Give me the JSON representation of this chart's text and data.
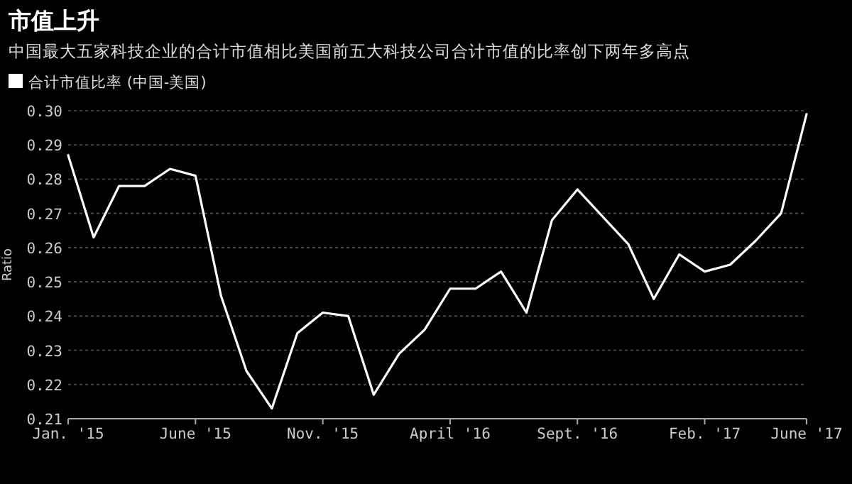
{
  "chart_data": {
    "type": "line",
    "title": "市值上升",
    "subtitle": "中国最大五家科技企业的合计市值相比美国前五大科技公司合计市值的比率创下两年多高点",
    "ylabel": "Ratio",
    "x": [
      "2015-01",
      "2015-02",
      "2015-03",
      "2015-04",
      "2015-05",
      "2015-06",
      "2015-07",
      "2015-08",
      "2015-09",
      "2015-10",
      "2015-11",
      "2015-12",
      "2016-01",
      "2016-02",
      "2016-03",
      "2016-04",
      "2016-05",
      "2016-06",
      "2016-07",
      "2016-08",
      "2016-09",
      "2016-10",
      "2016-11",
      "2016-12",
      "2017-01",
      "2017-02",
      "2017-03",
      "2017-04",
      "2017-05",
      "2017-06"
    ],
    "series": [
      {
        "name": "合计市值比率 (中国-美国)",
        "color": "#ffffff",
        "values": [
          0.287,
          0.263,
          0.278,
          0.278,
          0.283,
          0.281,
          0.246,
          0.224,
          0.213,
          0.235,
          0.241,
          0.24,
          0.217,
          0.229,
          0.236,
          0.248,
          0.248,
          0.253,
          0.241,
          0.268,
          0.277,
          0.269,
          0.261,
          0.245,
          0.258,
          0.253,
          0.255,
          0.262,
          0.27,
          0.299
        ]
      }
    ],
    "xlim": [
      "2015-01",
      "2017-06"
    ],
    "xticks": [
      {
        "value": "2015-01",
        "label": "Jan. '15"
      },
      {
        "value": "2015-06",
        "label": "June '15"
      },
      {
        "value": "2015-11",
        "label": "Nov. '15"
      },
      {
        "value": "2016-04",
        "label": "April '16"
      },
      {
        "value": "2016-09",
        "label": "Sept. '16"
      },
      {
        "value": "2017-02",
        "label": "Feb. '17"
      },
      {
        "value": "2017-06",
        "label": "June '17"
      }
    ],
    "ylim": [
      0.21,
      0.3
    ],
    "yticks": [
      0.21,
      0.22,
      0.23,
      0.24,
      0.25,
      0.26,
      0.27,
      0.28,
      0.29,
      {
        "value": 0.3,
        "label": "0.30"
      }
    ],
    "grid": "y",
    "legend": "top left",
    "line_style": "solid",
    "marker": "none"
  }
}
